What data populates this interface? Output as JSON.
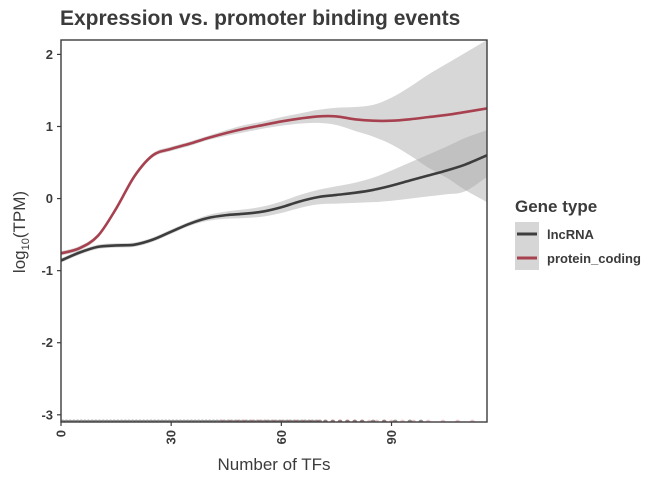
{
  "chart_data": {
    "type": "line",
    "title": "Expression vs. promoter binding events",
    "xlabel": "Number of TFs",
    "ylabel_base": "log",
    "ylabel_sub": "10",
    "ylabel_rest": "(TPM)",
    "xlim": [
      0,
      116
    ],
    "ylim": [
      -3.1,
      2.2
    ],
    "xticks": [
      0,
      30,
      60,
      90
    ],
    "yticks": [
      -3,
      -2,
      -1,
      0,
      1,
      2
    ],
    "grid": false,
    "legend": {
      "title": "Gene type",
      "placement": "right"
    },
    "series": [
      {
        "name": "lncRNA",
        "color": "#3d3d3d",
        "x": [
          0,
          5,
          10,
          15,
          20,
          25,
          30,
          35,
          40,
          45,
          50,
          55,
          60,
          65,
          70,
          75,
          80,
          85,
          90,
          95,
          100,
          105,
          110,
          116
        ],
        "y": [
          -0.86,
          -0.75,
          -0.67,
          -0.65,
          -0.64,
          -0.57,
          -0.46,
          -0.35,
          -0.27,
          -0.23,
          -0.21,
          -0.18,
          -0.12,
          -0.04,
          0.02,
          0.05,
          0.08,
          0.12,
          0.18,
          0.25,
          0.32,
          0.39,
          0.47,
          0.6
        ],
        "lower": [
          -0.89,
          -0.78,
          -0.7,
          -0.68,
          -0.67,
          -0.6,
          -0.49,
          -0.38,
          -0.31,
          -0.28,
          -0.27,
          -0.25,
          -0.2,
          -0.13,
          -0.08,
          -0.07,
          -0.06,
          -0.05,
          -0.03,
          0.0,
          0.03,
          0.06,
          0.1,
          0.3
        ],
        "upper": [
          -0.83,
          -0.72,
          -0.64,
          -0.62,
          -0.61,
          -0.54,
          -0.43,
          -0.32,
          -0.23,
          -0.18,
          -0.15,
          -0.11,
          -0.04,
          0.05,
          0.12,
          0.17,
          0.22,
          0.29,
          0.39,
          0.5,
          0.61,
          0.72,
          0.84,
          0.95
        ]
      },
      {
        "name": "protein_coding",
        "color": "#a8414f",
        "x": [
          0,
          5,
          10,
          15,
          20,
          25,
          30,
          35,
          40,
          45,
          50,
          55,
          60,
          65,
          70,
          75,
          80,
          85,
          90,
          95,
          100,
          105,
          110,
          116
        ],
        "y": [
          -0.76,
          -0.69,
          -0.52,
          -0.14,
          0.31,
          0.6,
          0.69,
          0.76,
          0.84,
          0.91,
          0.97,
          1.02,
          1.07,
          1.11,
          1.14,
          1.14,
          1.1,
          1.08,
          1.08,
          1.1,
          1.13,
          1.16,
          1.2,
          1.25
        ],
        "lower": [
          -0.79,
          -0.72,
          -0.55,
          -0.17,
          0.28,
          0.57,
          0.66,
          0.73,
          0.81,
          0.87,
          0.92,
          0.97,
          1.01,
          1.04,
          1.05,
          1.02,
          0.94,
          0.86,
          0.75,
          0.6,
          0.43,
          0.29,
          0.12,
          -0.05
        ],
        "upper": [
          -0.73,
          -0.66,
          -0.49,
          -0.11,
          0.34,
          0.63,
          0.72,
          0.79,
          0.87,
          0.95,
          1.02,
          1.07,
          1.13,
          1.18,
          1.23,
          1.26,
          1.27,
          1.3,
          1.4,
          1.55,
          1.72,
          1.87,
          2.02,
          2.2
        ]
      }
    ],
    "rug": {
      "y": -3.1,
      "color_lncrna": "#3d3d3d",
      "color_protein": "#a8414f",
      "x_lncrna": [
        0.5,
        1.5,
        2.5,
        3.5,
        4.5,
        5.5,
        6.5,
        7.5,
        8.5,
        9.5,
        10.5,
        11.5,
        12.5,
        13.5,
        14.5,
        15.5,
        16.5,
        17.5,
        18.5,
        19.5,
        20.5,
        21.5,
        22.5,
        23.5,
        24.5,
        25.5,
        26.5,
        27.5,
        28.5,
        29.5,
        30.5,
        31.5,
        32.5,
        33.5,
        34.5,
        35.5,
        36.5,
        37.5,
        38.5,
        39.5,
        40.5,
        41.5,
        42.5,
        43.5,
        44.5,
        45.5,
        46.5,
        47.5,
        48.5,
        49.5,
        50.5,
        51.5,
        52.5,
        53.5,
        54.5,
        55.5,
        56.5,
        57.5,
        58.5,
        59.5,
        60.5,
        61.5,
        62.5,
        63.5,
        64.5,
        65.5,
        66.5,
        67.5,
        68.5,
        69.5,
        70.5,
        72,
        74,
        76,
        78,
        80,
        82,
        85,
        88,
        91,
        95,
        98
      ],
      "x_protein": [
        44,
        46,
        48,
        50,
        52,
        54,
        56,
        58,
        60,
        62,
        64,
        66,
        68,
        70,
        72,
        74,
        76,
        78,
        80,
        82,
        84,
        86,
        88,
        90,
        93,
        96,
        100,
        104,
        108,
        112
      ]
    }
  }
}
